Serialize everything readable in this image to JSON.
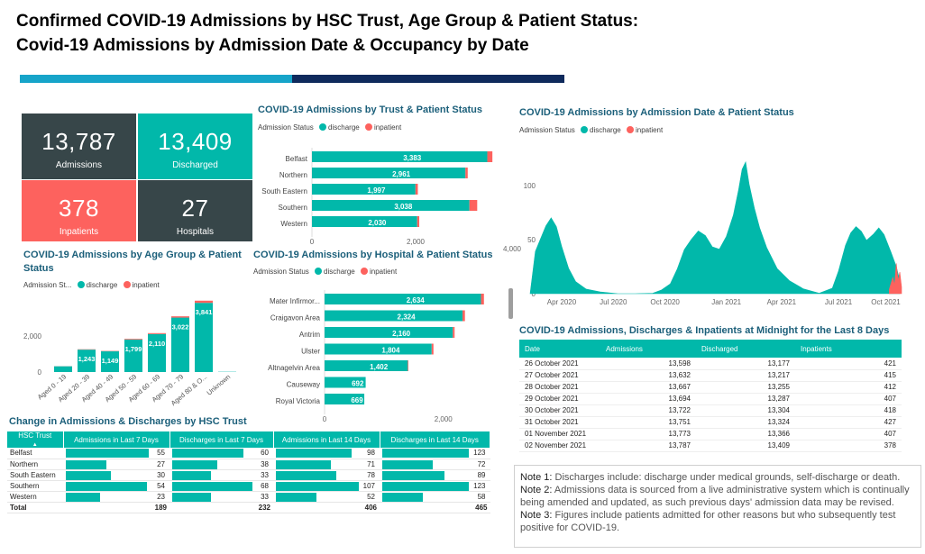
{
  "header": {
    "title_line1": "Confirmed COVID-19 Admissions by HSC Trust, Age Group & Patient Status:",
    "title_line2": "Covid-19 Admissions by Admission Date & Occupancy by Date"
  },
  "colors": {
    "teal": "#01b8aa",
    "red": "#fd625e",
    "slate": "#374649",
    "teal_bar": "#16a4c9",
    "navy_bar": "#0f2a5c"
  },
  "kpis": [
    {
      "value": "13,787",
      "label": "Admissions"
    },
    {
      "value": "13,409",
      "label": "Discharged"
    },
    {
      "value": "378",
      "label": "Inpatients"
    },
    {
      "value": "27",
      "label": "Hospitals"
    }
  ],
  "legend": {
    "status_label": "Admission Status",
    "status_label_short": "Admission St...",
    "discharge": "discharge",
    "inpatient": "inpatient"
  },
  "chart_data": [
    {
      "type": "bar",
      "title": "COVID-19 Admissions by Trust & Patient Status",
      "orientation": "horizontal",
      "categories": [
        "Belfast",
        "Northern",
        "South Eastern",
        "Southern",
        "Western"
      ],
      "series": [
        {
          "name": "discharge",
          "values": [
            3383,
            2961,
            1997,
            3038,
            2030
          ]
        },
        {
          "name": "inpatient",
          "values": [
            98,
            44,
            46,
            150,
            40
          ]
        }
      ],
      "data_labels": [
        "3,383",
        "2,961",
        "1,997",
        "3,038",
        "2,030"
      ],
      "x_ticks": [
        "0",
        "2,000"
      ],
      "xlim": [
        0,
        3600
      ]
    },
    {
      "type": "bar",
      "title": "COVID-19 Admissions by Age Group & Patient Status",
      "orientation": "vertical",
      "categories": [
        "Aged 0 - 19",
        "Aged 20 - 39",
        "Aged 40 - 49",
        "Aged 50 - 59",
        "Aged 60 - 69",
        "Aged 70 - 79",
        "Aged 80 & O...",
        "Unknown"
      ],
      "series": [
        {
          "name": "discharge",
          "values": [
            320,
            1243,
            1149,
            1799,
            2110,
            3022,
            3841,
            15
          ]
        },
        {
          "name": "inpatient",
          "values": [
            5,
            20,
            20,
            40,
            50,
            70,
            120,
            0
          ]
        }
      ],
      "data_labels": [
        "",
        "1,243",
        "1,149",
        "1,799",
        "2,110",
        "3,022",
        "3,841",
        ""
      ],
      "y_ticks": [
        "0",
        "2,000"
      ],
      "ylim": [
        0,
        4000
      ]
    },
    {
      "type": "bar",
      "title": "COVID-19 Admissions by Hospital & Patient Status",
      "orientation": "horizontal",
      "categories": [
        "Mater Infirmor...",
        "Craigavon Area",
        "Antrim",
        "Ulster",
        "Altnagelvin Area",
        "Causeway",
        "Royal Victoria"
      ],
      "series": [
        {
          "name": "discharge",
          "values": [
            2634,
            2324,
            2160,
            1804,
            1402,
            692,
            669
          ]
        },
        {
          "name": "inpatient",
          "values": [
            50,
            40,
            30,
            30,
            10,
            0,
            0
          ]
        }
      ],
      "data_labels": [
        "2,634",
        "2,324",
        "2,160",
        "1,804",
        "1,402",
        "692",
        "669"
      ],
      "x_ticks": [
        "0",
        "2,000"
      ],
      "xlim": [
        0,
        2900
      ]
    },
    {
      "type": "area",
      "title": "COVID-19 Admissions by Admission Date & Patient Status",
      "x_ticks": [
        "Apr 2020",
        "Jul 2020",
        "Oct 2020",
        "Jan 2021",
        "Apr 2021",
        "Jul 2021",
        "Oct 2021"
      ],
      "y_ticks": [
        "100",
        "50",
        "0"
      ],
      "y_tick_extra": "4,000",
      "ylim": [
        0,
        125
      ],
      "series": [
        {
          "name": "discharge",
          "points": [
            [
              0,
              0
            ],
            [
              6,
              40
            ],
            [
              12,
              50
            ],
            [
              18,
              60
            ],
            [
              24,
              72
            ],
            [
              30,
              62
            ],
            [
              36,
              42
            ],
            [
              44,
              26
            ],
            [
              52,
              12
            ],
            [
              64,
              4
            ],
            [
              80,
              1
            ],
            [
              100,
              0
            ],
            [
              120,
              0
            ],
            [
              140,
              0
            ],
            [
              150,
              4
            ],
            [
              160,
              10
            ],
            [
              168,
              22
            ],
            [
              176,
              38
            ],
            [
              184,
              52
            ],
            [
              192,
              58
            ],
            [
              200,
              52
            ],
            [
              208,
              46
            ],
            [
              216,
              42
            ],
            [
              224,
              52
            ],
            [
              232,
              70
            ],
            [
              238,
              98
            ],
            [
              242,
              115
            ],
            [
              246,
              120
            ],
            [
              250,
              104
            ],
            [
              256,
              80
            ],
            [
              262,
              60
            ],
            [
              270,
              40
            ],
            [
              282,
              25
            ],
            [
              296,
              12
            ],
            [
              312,
              4
            ],
            [
              330,
              1
            ],
            [
              345,
              6
            ],
            [
              352,
              20
            ],
            [
              360,
              42
            ],
            [
              366,
              58
            ],
            [
              372,
              62
            ],
            [
              378,
              56
            ],
            [
              384,
              52
            ],
            [
              392,
              56
            ],
            [
              398,
              60
            ],
            [
              404,
              52
            ],
            [
              412,
              40
            ],
            [
              418,
              25
            ],
            [
              422,
              10
            ]
          ]
        },
        {
          "name": "inpatient",
          "points": [
            [
              410,
              4
            ],
            [
              414,
              15
            ],
            [
              416,
              8
            ],
            [
              418,
              28
            ],
            [
              420,
              12
            ],
            [
              422,
              20
            ],
            [
              424,
              6
            ]
          ]
        }
      ]
    }
  ],
  "hsc_table": {
    "title": "Change in Admissions & Discharges by HSC Trust",
    "columns": [
      "HSC Trust",
      "Admissions in Last 7 Days",
      "Discharges in Last 7 Days",
      "Admissions in Last 14 Days",
      "Discharges in Last 14 Days"
    ],
    "rows": [
      {
        "trust": "Belfast",
        "a7": "55",
        "d7": "60",
        "a14": "98",
        "d14": "123"
      },
      {
        "trust": "Northern",
        "a7": "27",
        "d7": "38",
        "a14": "71",
        "d14": "72"
      },
      {
        "trust": "South Eastern",
        "a7": "30",
        "d7": "33",
        "a14": "78",
        "d14": "89"
      },
      {
        "trust": "Southern",
        "a7": "54",
        "d7": "68",
        "a14": "107",
        "d14": "123"
      },
      {
        "trust": "Western",
        "a7": "23",
        "d7": "33",
        "a14": "52",
        "d14": "58"
      }
    ],
    "max": {
      "a7": 55,
      "d7": 68,
      "a14": 107,
      "d14": 123
    },
    "total": {
      "label": "Total",
      "a7": "189",
      "d7": "232",
      "a14": "406",
      "d14": "465"
    }
  },
  "date_table": {
    "title": "COVID-19 Admissions, Discharges & Inpatients at Midnight for the Last 8 Days",
    "columns": [
      "Date",
      "Admissions",
      "Discharged",
      "Inpatients"
    ],
    "rows": [
      [
        "26 October 2021",
        "13,598",
        "13,177",
        "421"
      ],
      [
        "27 October 2021",
        "13,632",
        "13,217",
        "415"
      ],
      [
        "28 October 2021",
        "13,667",
        "13,255",
        "412"
      ],
      [
        "29 October 2021",
        "13,694",
        "13,287",
        "407"
      ],
      [
        "30 October 2021",
        "13,722",
        "13,304",
        "418"
      ],
      [
        "31 October 2021",
        "13,751",
        "13,324",
        "427"
      ],
      [
        "01 November 2021",
        "13,773",
        "13,366",
        "407"
      ],
      [
        "02 November 2021",
        "13,787",
        "13,409",
        "378"
      ]
    ]
  },
  "notes": [
    {
      "label": "Note 1:",
      "text": " Discharges include: discharge under medical grounds, self-discharge or death."
    },
    {
      "label": "Note 2:",
      "text": " Admissions data is sourced from a live administrative system which is continually being amended and updated, as such previous days' admission data may be revised."
    },
    {
      "label": "Note 3:",
      "text": " Figures include patients admitted for other reasons but who subsequently test positive for COVID-19."
    }
  ]
}
